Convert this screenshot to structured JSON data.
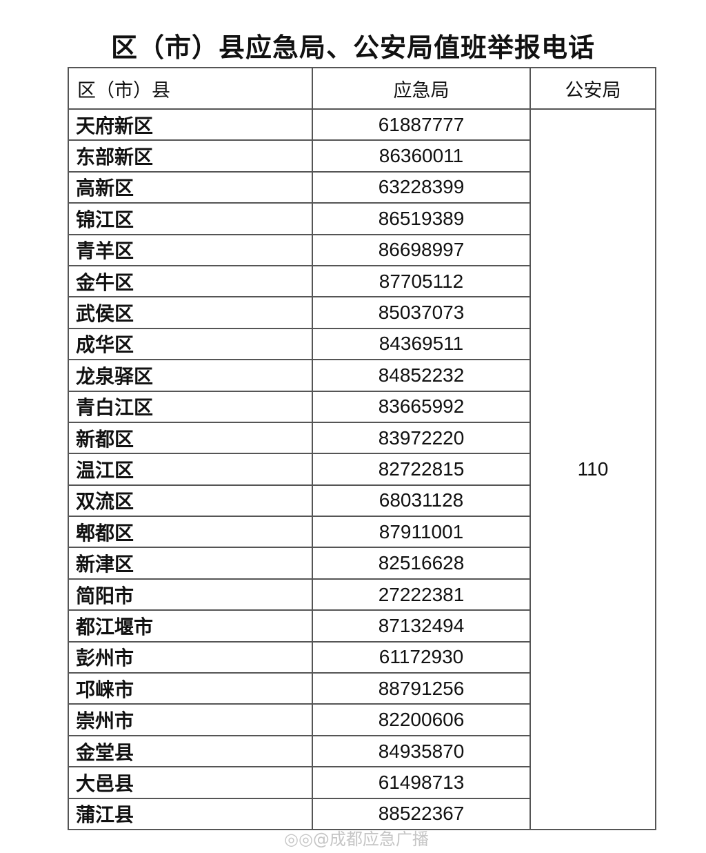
{
  "title": "区（市）县应急局、公安局值班举报电话",
  "table": {
    "headers": [
      "区（市）县",
      "应急局",
      "公安局"
    ],
    "police_number": "110",
    "rows": [
      {
        "district": "天府新区",
        "emergency": "61887777"
      },
      {
        "district": "东部新区",
        "emergency": "86360011"
      },
      {
        "district": "高新区",
        "emergency": "63228399"
      },
      {
        "district": "锦江区",
        "emergency": "86519389"
      },
      {
        "district": "青羊区",
        "emergency": "86698997"
      },
      {
        "district": "金牛区",
        "emergency": "87705112"
      },
      {
        "district": "武侯区",
        "emergency": "85037073"
      },
      {
        "district": "成华区",
        "emergency": "84369511"
      },
      {
        "district": "龙泉驿区",
        "emergency": "84852232"
      },
      {
        "district": "青白江区",
        "emergency": "83665992"
      },
      {
        "district": "新都区",
        "emergency": "83972220"
      },
      {
        "district": "温江区",
        "emergency": "82722815"
      },
      {
        "district": "双流区",
        "emergency": "68031128"
      },
      {
        "district": "郫都区",
        "emergency": "87911001"
      },
      {
        "district": "新津区",
        "emergency": "82516628"
      },
      {
        "district": "简阳市",
        "emergency": "27222381"
      },
      {
        "district": "都江堰市",
        "emergency": "87132494"
      },
      {
        "district": "彭州市",
        "emergency": "61172930"
      },
      {
        "district": "邛崃市",
        "emergency": "88791256"
      },
      {
        "district": "崇州市",
        "emergency": "82200606"
      },
      {
        "district": "金堂县",
        "emergency": "84935870"
      },
      {
        "district": "大邑县",
        "emergency": "61498713"
      },
      {
        "district": "蒲江县",
        "emergency": "88522367"
      }
    ]
  },
  "watermark": "@成都应急广播"
}
